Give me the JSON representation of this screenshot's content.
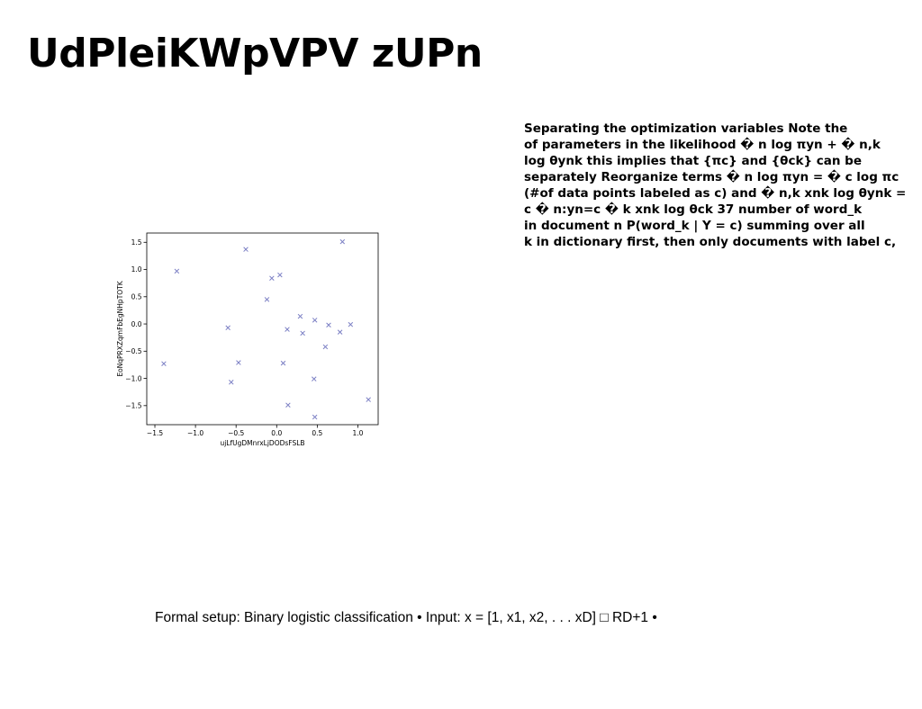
{
  "slide": {
    "title": "UdPleiKWpVPV zUPn",
    "body_lines": [
      "Separating the optimization variables Note the",
      "of parameters in the likelihood � n log πyn + � n,k",
      "log θynk this implies that {πc} and {θck} can be",
      "separately Reorganize terms � n log πyn = � c log πc",
      "(#of data points labeled as c) and � n,k xnk log θynk =",
      "c � n:yn=c � k xnk log θck 37 number of word_k",
      "in document n P(word_k | Y = c) summing over all",
      "k in dictionary first, then only documents with label c,"
    ],
    "footer": "Formal setup: Binary logistic classification • Input: x = [1, x1, x2, . . . xD] □ RD+1 •"
  },
  "chart_data": {
    "type": "scatter",
    "xlabel": "ujLfUgDMnrxLjDODsFSLB",
    "ylabel": "EoNqPRXZqmFbEgNHpTOTK",
    "xlim": [
      -1.6,
      1.25
    ],
    "ylim": [
      -1.85,
      1.67
    ],
    "xticks": [
      -1.5,
      -1.0,
      -0.5,
      0.0,
      0.5,
      1.0
    ],
    "xtick_labels": [
      "−1.5",
      "−1.0",
      "−0.5",
      "0.0",
      "0.5",
      "1.0"
    ],
    "yticks": [
      1.5,
      1.0,
      0.5,
      0.0,
      -0.5,
      -1.0,
      -1.5
    ],
    "ytick_labels": [
      "1.5",
      "1.0",
      "0.5",
      "0.0",
      "−0.5",
      "−1.0",
      "−1.5"
    ],
    "grid": false,
    "marker": "x",
    "color": "#7b7fc4",
    "points": [
      {
        "x": -1.39,
        "y": -0.73
      },
      {
        "x": -1.23,
        "y": 0.97
      },
      {
        "x": -0.6,
        "y": -0.07
      },
      {
        "x": -0.56,
        "y": -1.07
      },
      {
        "x": -0.47,
        "y": -0.71
      },
      {
        "x": -0.38,
        "y": 1.37
      },
      {
        "x": -0.12,
        "y": 0.45
      },
      {
        "x": -0.06,
        "y": 0.84
      },
      {
        "x": 0.04,
        "y": 0.9
      },
      {
        "x": 0.08,
        "y": -0.72
      },
      {
        "x": 0.13,
        "y": -0.1
      },
      {
        "x": 0.14,
        "y": -1.49
      },
      {
        "x": 0.29,
        "y": 0.14
      },
      {
        "x": 0.32,
        "y": -0.17
      },
      {
        "x": 0.46,
        "y": -1.01
      },
      {
        "x": 0.47,
        "y": 0.07
      },
      {
        "x": 0.47,
        "y": -1.71
      },
      {
        "x": 0.6,
        "y": -0.42
      },
      {
        "x": 0.64,
        "y": -0.02
      },
      {
        "x": 0.78,
        "y": -0.15
      },
      {
        "x": 0.81,
        "y": 1.51
      },
      {
        "x": 0.91,
        "y": -0.01
      },
      {
        "x": 1.13,
        "y": -1.39
      }
    ]
  }
}
